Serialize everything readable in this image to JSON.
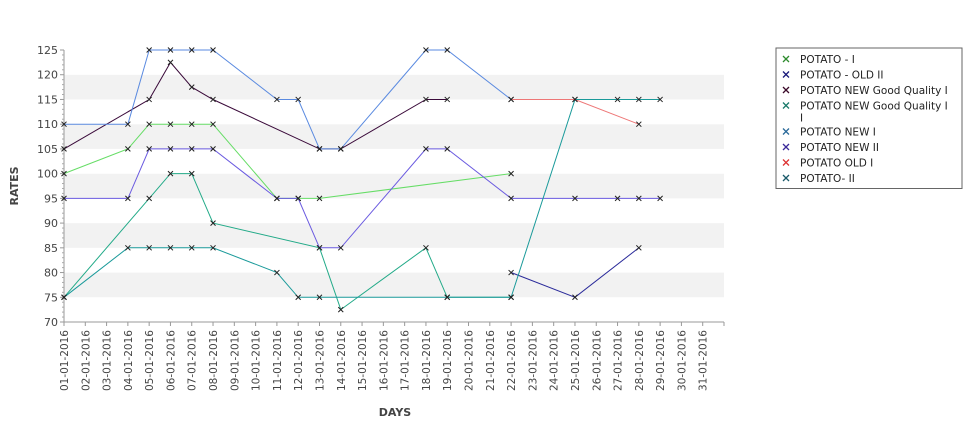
{
  "chart_data": {
    "type": "line",
    "title": "",
    "xlabel": "DAYS",
    "ylabel": "RATES",
    "ylim": [
      70,
      125
    ],
    "yticks": [
      70,
      75,
      80,
      85,
      90,
      95,
      100,
      105,
      110,
      115,
      120,
      125
    ],
    "x_categories": [
      "01-01-2016",
      "02-01-2016",
      "03-01-2016",
      "04-01-2016",
      "05-01-2016",
      "06-01-2016",
      "07-01-2016",
      "08-01-2016",
      "09-01-2016",
      "10-01-2016",
      "11-01-2016",
      "12-01-2016",
      "13-01-2016",
      "14-01-2016",
      "15-01-2016",
      "16-01-2016",
      "17-01-2016",
      "18-01-2016",
      "19-01-2016",
      "20-01-2016",
      "21-01-2016",
      "22-01-2016",
      "23-01-2016",
      "24-01-2016",
      "25-01-2016",
      "26-01-2016",
      "27-01-2016",
      "28-01-2016",
      "29-01-2016",
      "30-01-2016",
      "31-01-2016"
    ],
    "grid": "horizontal alternating bands",
    "legend_position": "right",
    "series": [
      {
        "name": "POTATO - I",
        "color": "#2e8b2e",
        "line_color": "#66dd66",
        "points": [
          [
            "01-01-2016",
            100
          ],
          [
            "04-01-2016",
            105
          ],
          [
            "05-01-2016",
            110
          ],
          [
            "06-01-2016",
            110
          ],
          [
            "07-01-2016",
            110
          ],
          [
            "08-01-2016",
            110
          ],
          [
            "11-01-2016",
            95
          ],
          [
            "12-01-2016",
            95
          ],
          [
            "13-01-2016",
            95
          ],
          [
            "22-01-2016",
            100
          ]
        ]
      },
      {
        "name": "POTATO - OLD II",
        "color": "#1a1a7a",
        "line_color": "#2a2a9a",
        "points": [
          [
            "22-01-2016",
            80
          ],
          [
            "25-01-2016",
            75
          ],
          [
            "28-01-2016",
            85
          ]
        ]
      },
      {
        "name": "POTATO NEW Good Quality I",
        "color": "#3a0a2a",
        "line_color": "#3a0a3a",
        "points": [
          [
            "01-01-2016",
            105
          ],
          [
            "05-01-2016",
            115
          ],
          [
            "06-01-2016",
            122.5
          ],
          [
            "07-01-2016",
            117.5
          ],
          [
            "08-01-2016",
            115
          ],
          [
            "13-01-2016",
            105
          ],
          [
            "14-01-2016",
            105
          ],
          [
            "18-01-2016",
            115
          ],
          [
            "19-01-2016",
            115
          ]
        ]
      },
      {
        "name": "POTATO NEW Good Quality I I",
        "color": "#1a7a6a",
        "line_color": "#22aa88",
        "points": [
          [
            "01-01-2016",
            75
          ],
          [
            "05-01-2016",
            95
          ],
          [
            "06-01-2016",
            100
          ],
          [
            "07-01-2016",
            100
          ],
          [
            "08-01-2016",
            90
          ],
          [
            "13-01-2016",
            85
          ],
          [
            "14-01-2016",
            72.5
          ],
          [
            "18-01-2016",
            85
          ],
          [
            "19-01-2016",
            75
          ],
          [
            "22-01-2016",
            75
          ]
        ]
      },
      {
        "name": "POTATO NEW I",
        "color": "#2a6a9a",
        "line_color": "#5a8ae0",
        "points": [
          [
            "01-01-2016",
            110
          ],
          [
            "04-01-2016",
            110
          ],
          [
            "05-01-2016",
            125
          ],
          [
            "06-01-2016",
            125
          ],
          [
            "07-01-2016",
            125
          ],
          [
            "08-01-2016",
            125
          ],
          [
            "11-01-2016",
            115
          ],
          [
            "12-01-2016",
            115
          ],
          [
            "13-01-2016",
            105
          ],
          [
            "14-01-2016",
            105
          ],
          [
            "18-01-2016",
            125
          ],
          [
            "19-01-2016",
            125
          ],
          [
            "22-01-2016",
            115
          ]
        ]
      },
      {
        "name": "POTATO NEW II",
        "color": "#3a2a9a",
        "line_color": "#6a5ae0",
        "points": [
          [
            "01-01-2016",
            95
          ],
          [
            "04-01-2016",
            95
          ],
          [
            "05-01-2016",
            105
          ],
          [
            "06-01-2016",
            105
          ],
          [
            "07-01-2016",
            105
          ],
          [
            "08-01-2016",
            105
          ],
          [
            "11-01-2016",
            95
          ],
          [
            "12-01-2016",
            95
          ],
          [
            "13-01-2016",
            85
          ],
          [
            "14-01-2016",
            85
          ],
          [
            "18-01-2016",
            105
          ],
          [
            "19-01-2016",
            105
          ],
          [
            "22-01-2016",
            95
          ],
          [
            "25-01-2016",
            95
          ],
          [
            "27-01-2016",
            95
          ],
          [
            "28-01-2016",
            95
          ],
          [
            "29-01-2016",
            95
          ]
        ]
      },
      {
        "name": "POTATO OLD I",
        "color": "#dd3333",
        "line_color": "#ee7777",
        "points": [
          [
            "22-01-2016",
            115
          ],
          [
            "25-01-2016",
            115
          ],
          [
            "28-01-2016",
            110
          ]
        ]
      },
      {
        "name": "POTATO- II",
        "color": "#1a5a6a",
        "line_color": "#1a9a9a",
        "points": [
          [
            "01-01-2016",
            75
          ],
          [
            "04-01-2016",
            85
          ],
          [
            "05-01-2016",
            85
          ],
          [
            "06-01-2016",
            85
          ],
          [
            "07-01-2016",
            85
          ],
          [
            "08-01-2016",
            85
          ],
          [
            "11-01-2016",
            80
          ],
          [
            "12-01-2016",
            75
          ],
          [
            "13-01-2016",
            75
          ],
          [
            "19-01-2016",
            75
          ],
          [
            "22-01-2016",
            75
          ],
          [
            "25-01-2016",
            115
          ],
          [
            "27-01-2016",
            115
          ],
          [
            "28-01-2016",
            115
          ],
          [
            "29-01-2016",
            115
          ]
        ]
      }
    ]
  }
}
